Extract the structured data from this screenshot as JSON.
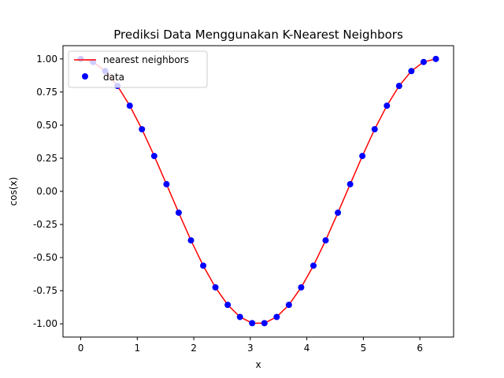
{
  "chart_data": {
    "type": "scatter",
    "title": "Prediksi Data Menggunakan K-Nearest Neighbors",
    "xlabel": "x",
    "ylabel": "cos(x)",
    "xlim": [
      -0.314,
      6.597
    ],
    "ylim": [
      -1.1,
      1.1
    ],
    "xticks": [
      "0",
      "1",
      "2",
      "3",
      "4",
      "5",
      "6"
    ],
    "yticks": [
      "-1.00",
      "-0.75",
      "-0.50",
      "-0.25",
      "0.00",
      "0.25",
      "0.50",
      "0.75",
      "1.00"
    ],
    "legend_position": "top-left",
    "series": [
      {
        "name": "nearest neighbors",
        "kind": "line",
        "color": "#ff0000",
        "x": [
          0.0,
          0.217,
          0.433,
          0.65,
          0.867,
          1.083,
          1.3,
          1.517,
          1.733,
          1.95,
          2.167,
          2.383,
          2.6,
          2.817,
          3.033,
          3.25,
          3.467,
          3.683,
          3.9,
          4.117,
          4.333,
          4.55,
          4.767,
          4.983,
          5.2,
          5.417,
          5.633,
          5.85,
          6.067,
          6.283
        ],
        "y": [
          1.0,
          0.977,
          0.908,
          0.796,
          0.647,
          0.469,
          0.267,
          0.054,
          -0.161,
          -0.37,
          -0.561,
          -0.725,
          -0.857,
          -0.948,
          -0.995,
          -0.995,
          -0.948,
          -0.857,
          -0.725,
          -0.561,
          -0.37,
          -0.161,
          0.054,
          0.267,
          0.469,
          0.647,
          0.796,
          0.908,
          0.977,
          1.0
        ]
      },
      {
        "name": "data",
        "kind": "scatter",
        "color": "#0000ff",
        "x": [
          0.0,
          0.217,
          0.433,
          0.65,
          0.867,
          1.083,
          1.3,
          1.517,
          1.733,
          1.95,
          2.167,
          2.383,
          2.6,
          2.817,
          3.033,
          3.25,
          3.467,
          3.683,
          3.9,
          4.117,
          4.333,
          4.55,
          4.767,
          4.983,
          5.2,
          5.417,
          5.633,
          5.85,
          6.067,
          6.283
        ],
        "y": [
          1.0,
          0.977,
          0.908,
          0.796,
          0.647,
          0.469,
          0.267,
          0.054,
          -0.161,
          -0.37,
          -0.561,
          -0.725,
          -0.857,
          -0.948,
          -0.995,
          -0.995,
          -0.948,
          -0.857,
          -0.725,
          -0.561,
          -0.37,
          -0.161,
          0.054,
          0.267,
          0.469,
          0.647,
          0.796,
          0.908,
          0.977,
          1.0
        ]
      }
    ]
  }
}
